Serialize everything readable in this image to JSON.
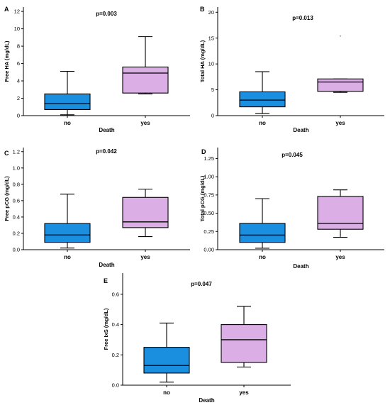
{
  "chart_data": [
    {
      "type": "box",
      "panel_label": "A",
      "title": "p=0.003",
      "xlabel": "Death",
      "ylabel": "Free HA (mg/dL)",
      "categories": [
        "no",
        "yes"
      ],
      "ylim": [
        0,
        12.5
      ],
      "yticks": [
        0,
        2,
        4,
        6,
        8,
        10,
        12
      ],
      "ytick_labels": [
        "0",
        "2",
        "4",
        "6",
        "8",
        "10",
        "12"
      ],
      "boxes": [
        {
          "category": "no",
          "min": 0.1,
          "q1": 0.7,
          "median": 1.4,
          "q3": 2.5,
          "max": 5.1,
          "color": "#1a8fe0"
        },
        {
          "category": "yes",
          "min": 2.5,
          "q1": 2.6,
          "median": 4.9,
          "q3": 5.6,
          "max": 9.1,
          "color": "#dcaee6"
        }
      ],
      "grid": false
    },
    {
      "type": "box",
      "panel_label": "B",
      "title": "p=0.013",
      "xlabel": "Death",
      "ylabel": "Total HA (mg/dL)",
      "categories": [
        "no",
        "yes"
      ],
      "ylim": [
        0,
        21
      ],
      "yticks": [
        0,
        5,
        10,
        15,
        20
      ],
      "ytick_labels": [
        "0",
        "5",
        "10",
        "15",
        "20"
      ],
      "boxes": [
        {
          "category": "no",
          "min": 0.4,
          "q1": 1.7,
          "median": 3.0,
          "q3": 4.6,
          "max": 8.5,
          "color": "#1a8fe0"
        },
        {
          "category": "yes",
          "min": 4.5,
          "q1": 4.7,
          "median": 6.5,
          "q3": 7.1,
          "max": 7.1,
          "color": "#dcaee6",
          "outliers": [
            15.4
          ]
        }
      ],
      "grid": false
    },
    {
      "type": "box",
      "panel_label": "C",
      "title": "p=0.042",
      "xlabel": "Death",
      "ylabel": "Free pCG (mg/dL)",
      "categories": [
        "no",
        "yes"
      ],
      "ylim": [
        0,
        1.25
      ],
      "yticks": [
        0,
        0.2,
        0.4,
        0.6,
        0.8,
        1.0,
        1.2
      ],
      "ytick_labels": [
        "0.0",
        "0.2",
        "0.4",
        "0.6",
        "0.8",
        "1.0",
        "1.2"
      ],
      "boxes": [
        {
          "category": "no",
          "min": 0.02,
          "q1": 0.09,
          "median": 0.18,
          "q3": 0.32,
          "max": 0.68,
          "color": "#1a8fe0"
        },
        {
          "category": "yes",
          "min": 0.16,
          "q1": 0.27,
          "median": 0.34,
          "q3": 0.64,
          "max": 0.74,
          "color": "#dcaee6"
        }
      ],
      "grid": false
    },
    {
      "type": "box",
      "panel_label": "D",
      "title": "p=0.045",
      "xlabel": "Death",
      "ylabel": "Total pCG (mg/dL)",
      "categories": [
        "no",
        "yes"
      ],
      "ylim": [
        0,
        1.4
      ],
      "yticks": [
        0,
        0.25,
        0.5,
        0.75,
        1.0,
        1.25
      ],
      "ytick_labels": [
        "0.00",
        "0.25",
        "0.50",
        "0.75",
        "1.00",
        "1.25"
      ],
      "boxes": [
        {
          "category": "no",
          "min": 0.02,
          "q1": 0.1,
          "median": 0.2,
          "q3": 0.36,
          "max": 0.7,
          "color": "#1a8fe0"
        },
        {
          "category": "yes",
          "min": 0.17,
          "q1": 0.28,
          "median": 0.36,
          "q3": 0.73,
          "max": 0.82,
          "color": "#dcaee6"
        }
      ],
      "grid": false
    },
    {
      "type": "box",
      "panel_label": "E",
      "title": "p=0.047",
      "xlabel": "Death",
      "ylabel": "Free IxS (mg/dL)",
      "categories": [
        "no",
        "yes"
      ],
      "ylim": [
        0,
        0.74
      ],
      "yticks": [
        0,
        0.2,
        0.4,
        0.6
      ],
      "ytick_labels": [
        "0.0",
        "0.2",
        "0.4",
        "0.6"
      ],
      "boxes": [
        {
          "category": "no",
          "min": 0.02,
          "q1": 0.08,
          "median": 0.13,
          "q3": 0.25,
          "max": 0.41,
          "color": "#1a8fe0"
        },
        {
          "category": "yes",
          "min": 0.12,
          "q1": 0.15,
          "median": 0.3,
          "q3": 0.4,
          "max": 0.52,
          "color": "#dcaee6"
        }
      ],
      "grid": false
    }
  ]
}
